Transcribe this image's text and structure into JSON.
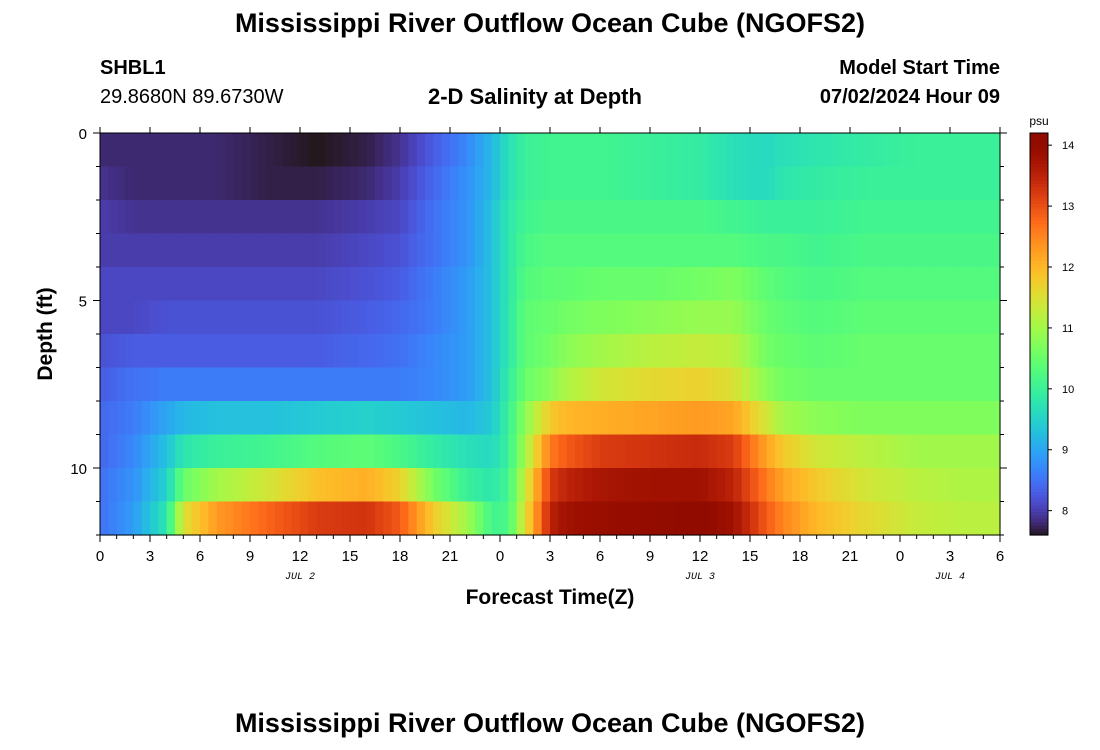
{
  "page": {
    "title_top": "Mississippi River Outflow Ocean Cube (NGOFS2)",
    "title_bottom": "Mississippi River Outflow Ocean Cube (NGOFS2)",
    "station_id": "SHBL1",
    "coordinates": "29.8680N  89.6730W",
    "subtitle": "2-D Salinity at Depth",
    "model_start_label": "Model Start Time",
    "model_start_value": "07/02/2024 Hour 09"
  },
  "chart_data": {
    "type": "heatmap",
    "title": "2-D Salinity at Depth",
    "xlabel": "Forecast Time(Z)",
    "ylabel": "Depth (ft)",
    "x_tick_labels": [
      "0",
      "3",
      "6",
      "9",
      "12",
      "15",
      "18",
      "21",
      "0",
      "3",
      "6",
      "9",
      "12",
      "15",
      "18",
      "21",
      "0",
      "3",
      "6"
    ],
    "x_day_labels": [
      {
        "label": "JUL 2",
        "hour": 12
      },
      {
        "label": "JUL 3",
        "hour": 36
      },
      {
        "label": "JUL 4",
        "hour": 51
      }
    ],
    "x_range_hours": [
      0,
      54
    ],
    "y_ticks": [
      0,
      5,
      10
    ],
    "y_range_ft": [
      0,
      12
    ],
    "y_inverted": true,
    "colorbar": {
      "unit": "psu",
      "range": [
        7.6,
        14.2
      ],
      "ticks": [
        8,
        9,
        10,
        11,
        12,
        13,
        14
      ],
      "colormap": "turbo"
    },
    "depth_layers_ft": [
      0.5,
      1.5,
      2.5,
      3.5,
      4.5,
      5.5,
      6.5,
      7.5,
      8.5,
      9.5,
      10.5,
      11.5
    ],
    "time_hours": [
      0,
      2,
      4,
      5,
      7,
      10,
      13,
      16,
      18,
      20,
      22,
      23.5,
      24.5,
      25.5,
      27,
      28,
      30,
      33,
      36,
      38,
      40,
      41,
      43,
      46,
      49,
      52,
      54
    ],
    "salinity_psu": [
      [
        7.8,
        7.8,
        7.8,
        7.8,
        7.8,
        7.7,
        7.6,
        7.7,
        7.9,
        8.3,
        8.7,
        9.2,
        9.7,
        10.0,
        10.1,
        10.1,
        10.1,
        10.0,
        9.9,
        9.7,
        9.6,
        9.7,
        9.8,
        9.9,
        10.0,
        10.0,
        10.0
      ],
      [
        7.9,
        7.8,
        7.8,
        7.8,
        7.8,
        7.7,
        7.7,
        7.8,
        8.0,
        8.4,
        8.8,
        9.2,
        9.7,
        10.0,
        10.1,
        10.1,
        10.1,
        10.0,
        9.9,
        9.7,
        9.6,
        9.8,
        9.9,
        10.0,
        10.0,
        10.0,
        10.0
      ],
      [
        8.0,
        7.9,
        7.9,
        7.9,
        7.9,
        7.9,
        7.9,
        8.0,
        8.1,
        8.5,
        8.8,
        9.3,
        9.8,
        10.1,
        10.2,
        10.2,
        10.2,
        10.2,
        10.2,
        10.1,
        10.0,
        10.0,
        10.0,
        10.1,
        10.1,
        10.1,
        10.1
      ],
      [
        8.0,
        8.0,
        8.0,
        8.0,
        8.0,
        8.0,
        8.0,
        8.1,
        8.2,
        8.5,
        8.8,
        9.3,
        9.8,
        10.2,
        10.3,
        10.3,
        10.3,
        10.3,
        10.3,
        10.3,
        10.2,
        10.2,
        10.1,
        10.2,
        10.2,
        10.2,
        10.2
      ],
      [
        8.1,
        8.1,
        8.1,
        8.1,
        8.1,
        8.1,
        8.1,
        8.2,
        8.3,
        8.6,
        8.9,
        9.3,
        9.8,
        10.3,
        10.4,
        10.4,
        10.5,
        10.5,
        10.6,
        10.7,
        10.4,
        10.3,
        10.2,
        10.3,
        10.3,
        10.3,
        10.3
      ],
      [
        8.1,
        8.1,
        8.2,
        8.2,
        8.2,
        8.2,
        8.2,
        8.3,
        8.4,
        8.6,
        8.9,
        9.3,
        9.8,
        10.4,
        10.5,
        10.6,
        10.7,
        10.8,
        10.9,
        10.9,
        10.5,
        10.4,
        10.3,
        10.4,
        10.4,
        10.4,
        10.4
      ],
      [
        8.2,
        8.3,
        8.3,
        8.3,
        8.3,
        8.3,
        8.3,
        8.4,
        8.5,
        8.7,
        8.9,
        9.3,
        9.8,
        10.4,
        10.6,
        10.8,
        11.0,
        11.2,
        11.3,
        11.2,
        10.6,
        10.5,
        10.4,
        10.5,
        10.5,
        10.5,
        10.5
      ],
      [
        8.3,
        8.5,
        8.6,
        8.6,
        8.6,
        8.6,
        8.6,
        8.6,
        8.6,
        8.7,
        8.9,
        9.3,
        9.9,
        10.5,
        10.8,
        11.1,
        11.4,
        11.6,
        11.7,
        11.5,
        10.8,
        10.6,
        10.5,
        10.5,
        10.5,
        10.5,
        10.5
      ],
      [
        8.4,
        8.6,
        9.0,
        9.2,
        9.3,
        9.3,
        9.4,
        9.5,
        9.4,
        9.3,
        9.2,
        9.4,
        10.0,
        10.8,
        11.8,
        12.0,
        12.1,
        12.2,
        12.3,
        12.2,
        11.4,
        11.0,
        10.8,
        10.7,
        10.7,
        10.7,
        10.7
      ],
      [
        8.4,
        8.7,
        9.3,
        9.8,
        10.0,
        10.1,
        10.3,
        10.4,
        10.2,
        9.9,
        9.7,
        9.6,
        10.0,
        11.0,
        12.6,
        12.9,
        13.2,
        13.3,
        13.4,
        13.2,
        12.2,
        11.8,
        11.4,
        11.2,
        11.0,
        11.0,
        11.0
      ],
      [
        8.5,
        8.8,
        9.5,
        10.5,
        11.0,
        11.4,
        11.9,
        12.1,
        11.7,
        10.6,
        10.0,
        9.8,
        10.1,
        11.3,
        13.2,
        13.5,
        13.7,
        13.8,
        13.8,
        13.5,
        12.6,
        12.2,
        11.8,
        11.4,
        11.2,
        11.1,
        11.1
      ],
      [
        8.5,
        8.9,
        9.8,
        11.5,
        12.3,
        12.8,
        13.2,
        13.3,
        12.9,
        11.8,
        11.0,
        10.1,
        10.2,
        11.5,
        13.5,
        13.8,
        13.9,
        14.0,
        14.1,
        13.8,
        12.9,
        12.5,
        12.0,
        11.6,
        11.3,
        11.2,
        11.2
      ]
    ]
  }
}
